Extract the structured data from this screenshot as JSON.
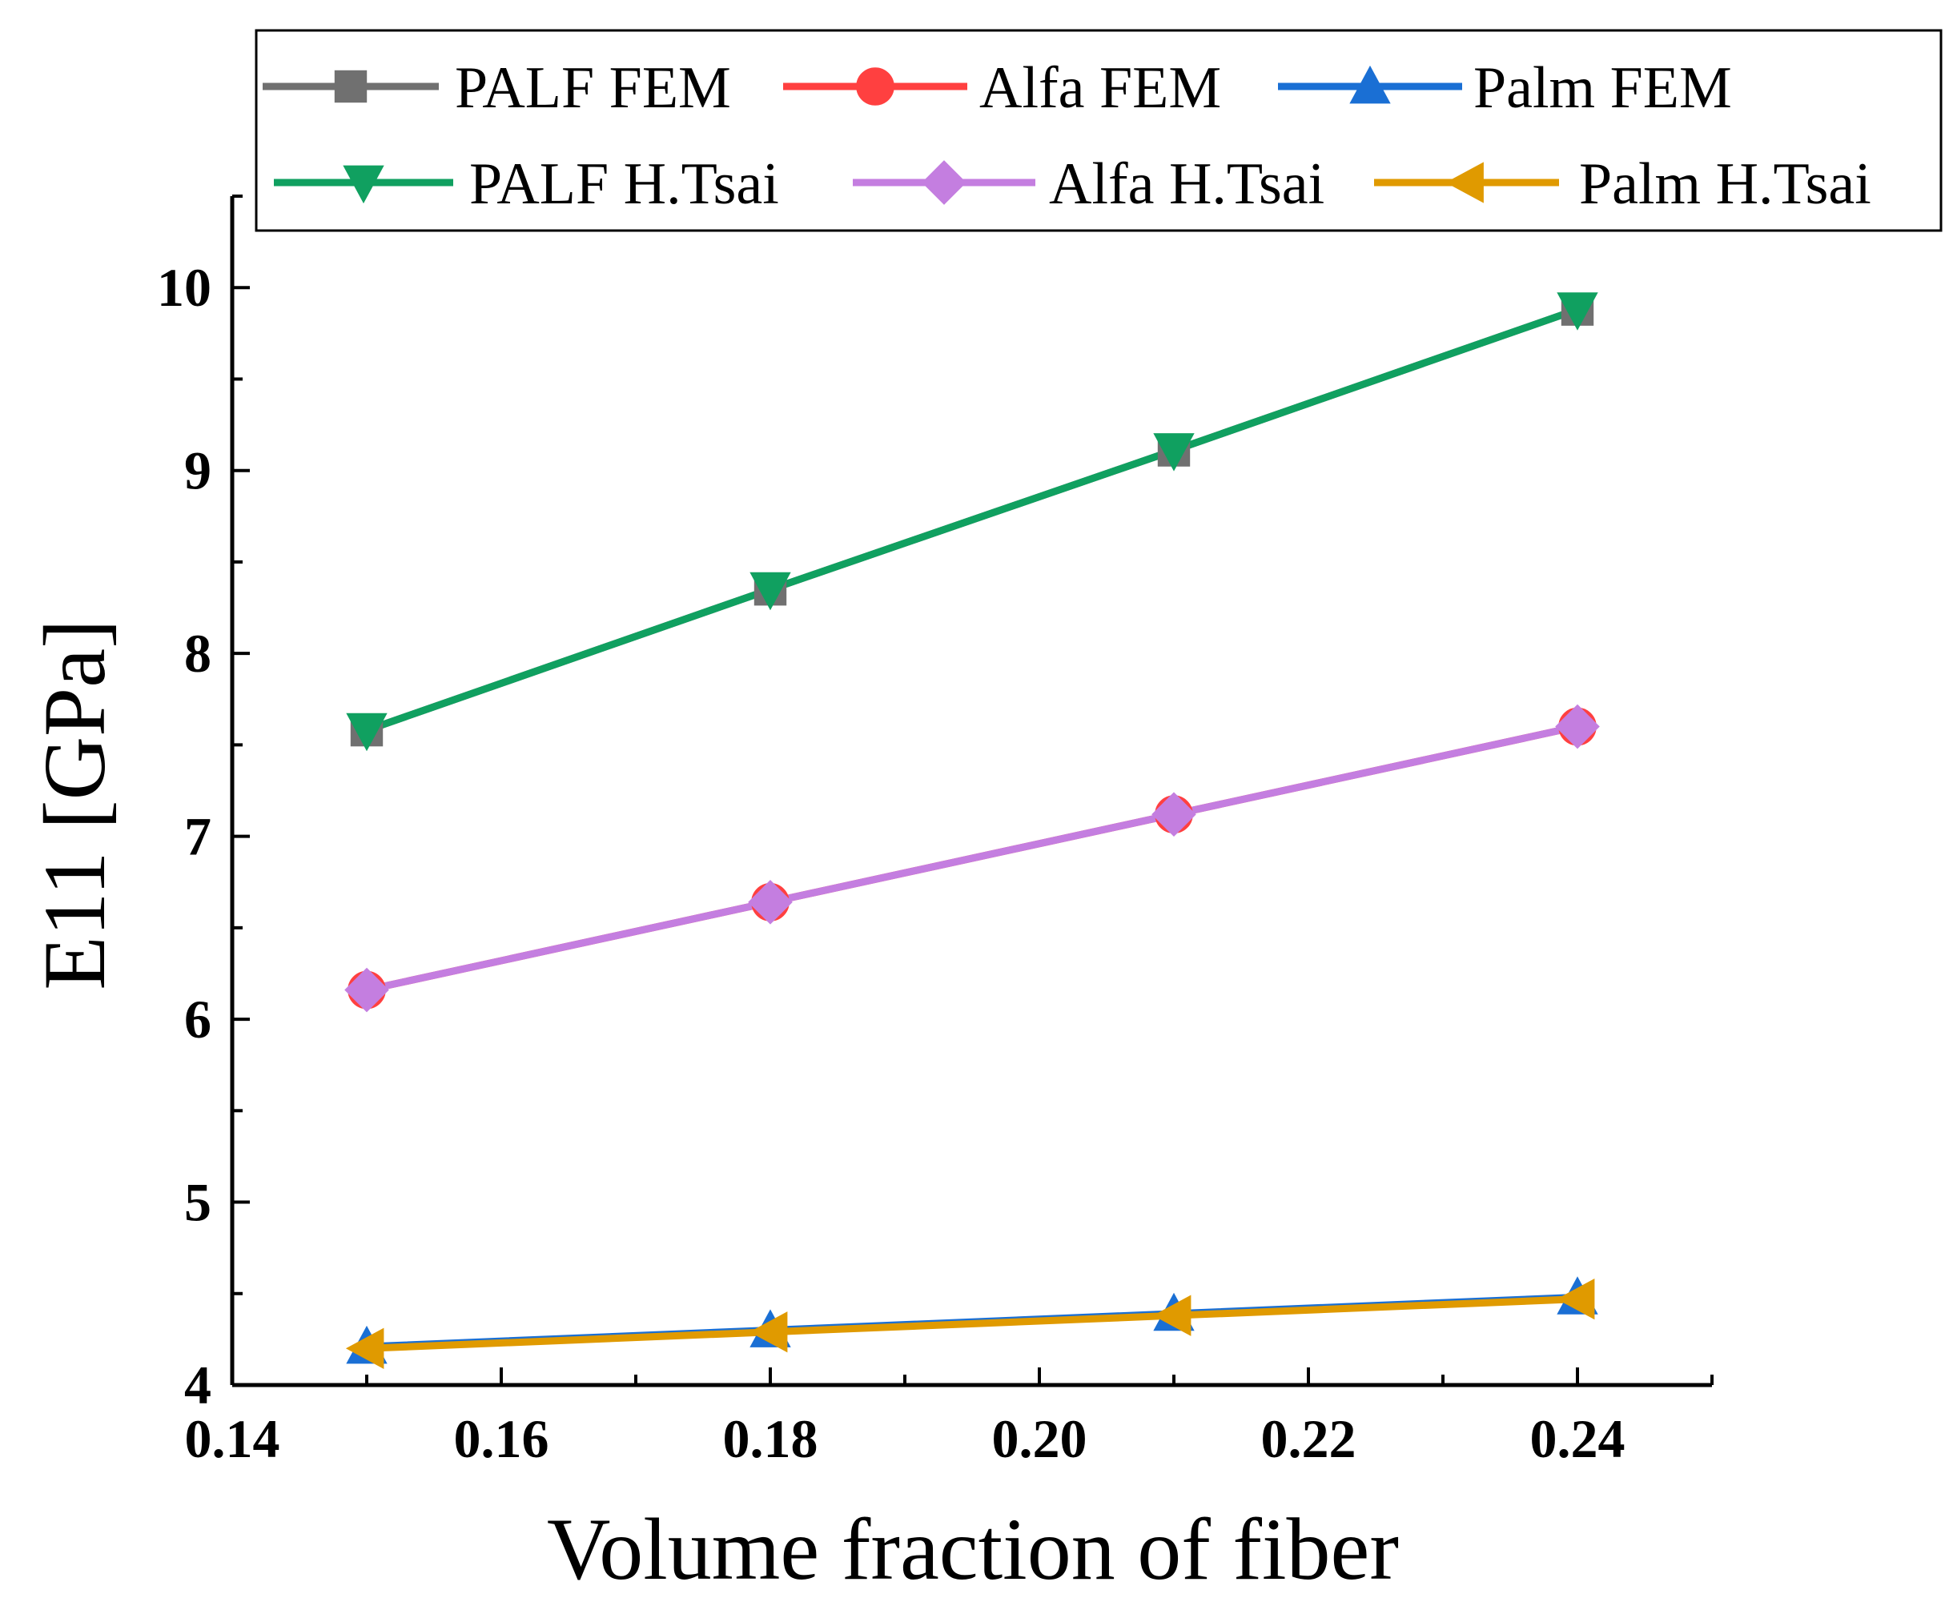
{
  "chart_data": {
    "type": "line",
    "title": "",
    "xlabel": "Volume fraction of  fiber",
    "ylabel": "E11 [GPa]",
    "xlim": [
      0.14,
      0.25
    ],
    "ylim": [
      4,
      10.5
    ],
    "x": [
      0.15,
      0.18,
      0.21,
      0.24
    ],
    "xticks": [
      "0.14",
      "0.16",
      "0.18",
      "0.20",
      "0.22",
      "0.24"
    ],
    "yticks": [
      "4",
      "5",
      "6",
      "7",
      "8",
      "9",
      "10"
    ],
    "grid": false,
    "legend_position": "top",
    "series": [
      {
        "name": "PALF FEM",
        "color": "#707070",
        "marker": "square",
        "values": [
          7.58,
          8.35,
          9.11,
          9.88
        ]
      },
      {
        "name": "Alfa FEM",
        "color": "#ff4040",
        "marker": "circle",
        "values": [
          6.16,
          6.64,
          7.12,
          7.6
        ]
      },
      {
        "name": "Palm FEM",
        "color": "#1a6fd4",
        "marker": "triangle-up",
        "values": [
          4.21,
          4.3,
          4.39,
          4.48
        ]
      },
      {
        "name": "PALF H.Tsai",
        "color": "#10a060",
        "marker": "triangle-down",
        "values": [
          7.58,
          8.35,
          9.11,
          9.88
        ]
      },
      {
        "name": "Alfa H.Tsai",
        "color": "#c47ee0",
        "marker": "diamond",
        "values": [
          6.16,
          6.64,
          7.12,
          7.6
        ]
      },
      {
        "name": "Palm H.Tsai",
        "color": "#e09a00",
        "marker": "triangle-left",
        "values": [
          4.2,
          4.29,
          4.38,
          4.47
        ]
      }
    ]
  }
}
